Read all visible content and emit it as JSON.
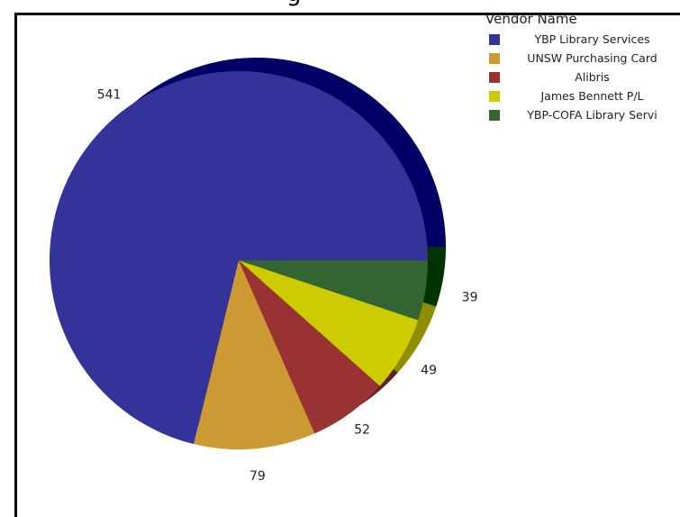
{
  "chart_data": {
    "type": "pie",
    "title": "",
    "legend_title": "Vendor Name",
    "legend_position": "top-right",
    "categories": [
      "YBP Library Services",
      "UNSW Purchasing Card",
      "Alibris",
      "James Bennett P/L",
      "YBP-COFA Library Servi"
    ],
    "values": [
      541,
      79,
      52,
      49,
      39
    ],
    "colors": [
      "#333399",
      "#CC9933",
      "#993333",
      "#CCCC00",
      "#336633"
    ],
    "shadow_colors": [
      "#000066",
      "#8E6422",
      "#5C2323",
      "#8E8E00",
      "#003300"
    ]
  }
}
